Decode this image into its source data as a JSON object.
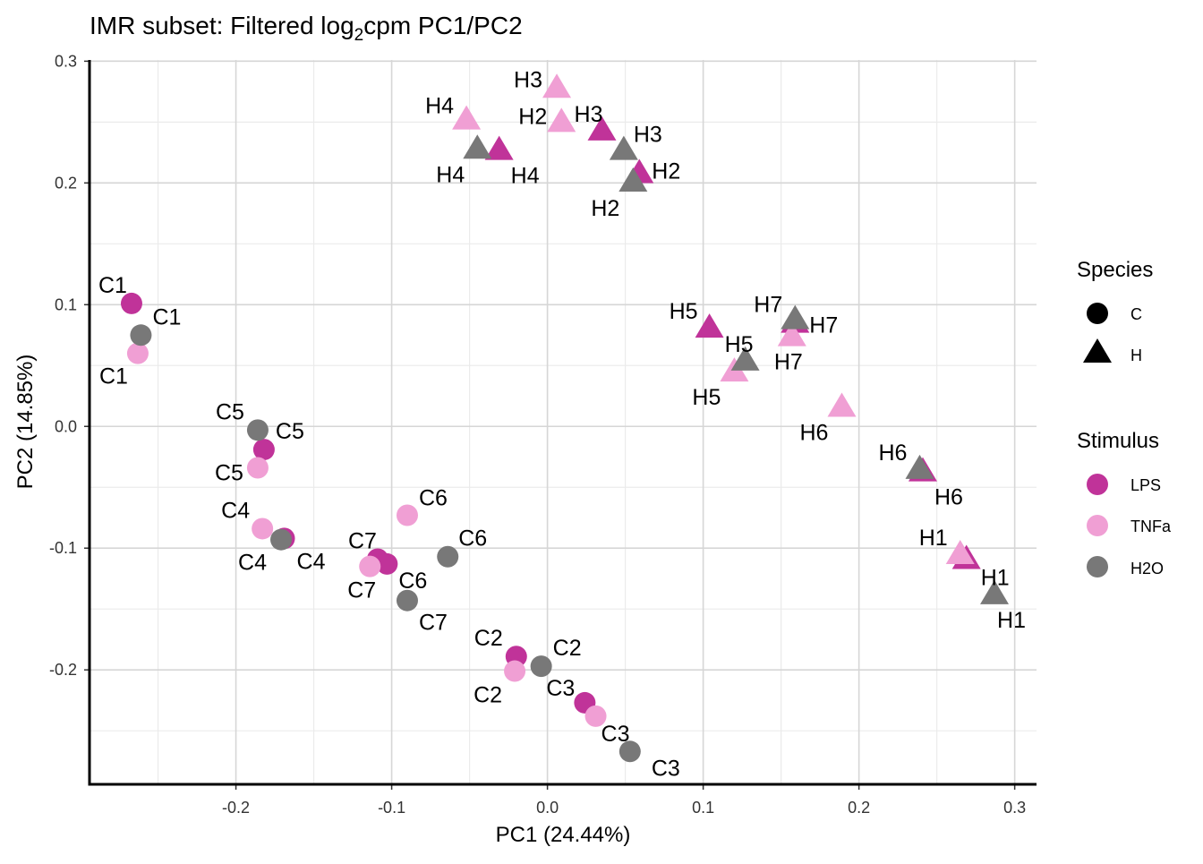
{
  "chart_data": {
    "type": "scatter",
    "title": {
      "prefix": "IMR subset: Filtered log",
      "subscript": "2",
      "suffix": "cpm PC1/PC2"
    },
    "xlabel": "PC1 (24.44%)",
    "ylabel": "PC2 (14.85%)",
    "xlim": [
      -0.294,
      0.314
    ],
    "ylim": [
      -0.294,
      0.301
    ],
    "xticks": [
      -0.2,
      -0.1,
      0.0,
      0.1,
      0.2,
      0.3
    ],
    "xtick_labels": [
      "-0.2",
      "-0.1",
      "0.0",
      "0.1",
      "0.2",
      "0.3"
    ],
    "yticks": [
      -0.2,
      -0.1,
      0.0,
      0.1,
      0.2,
      0.3
    ],
    "ytick_labels": [
      "-0.2",
      "-0.1",
      "0.0",
      "0.1",
      "0.2",
      "0.3"
    ],
    "grid": true,
    "legend_position": "right",
    "legend": {
      "species": {
        "title": "Species",
        "items": [
          {
            "label": "C",
            "shape": "circle"
          },
          {
            "label": "H",
            "shape": "triangle"
          }
        ]
      },
      "stimulus": {
        "title": "Stimulus",
        "items": [
          {
            "label": "LPS",
            "color": "#C03399"
          },
          {
            "label": "TNFa",
            "color": "#F09FD4"
          },
          {
            "label": "H2O",
            "color": "#787878"
          }
        ]
      }
    },
    "points": [
      {
        "sample": "C1",
        "species": "C",
        "stimulus": "LPS",
        "pc1": -0.267,
        "pc2": 0.101
      },
      {
        "sample": "C5",
        "species": "C",
        "stimulus": "LPS",
        "pc1": -0.182,
        "pc2": -0.019
      },
      {
        "sample": "C4",
        "species": "C",
        "stimulus": "LPS",
        "pc1": -0.169,
        "pc2": -0.092
      },
      {
        "sample": "C7",
        "species": "C",
        "stimulus": "LPS",
        "pc1": -0.109,
        "pc2": -0.109
      },
      {
        "sample": "C6",
        "species": "C",
        "stimulus": "LPS",
        "pc1": -0.103,
        "pc2": -0.113
      },
      {
        "sample": "C2",
        "species": "C",
        "stimulus": "LPS",
        "pc1": -0.02,
        "pc2": -0.189
      },
      {
        "sample": "C3",
        "species": "C",
        "stimulus": "LPS",
        "pc1": 0.024,
        "pc2": -0.227
      },
      {
        "sample": "C1",
        "species": "C",
        "stimulus": "TNFa",
        "pc1": -0.263,
        "pc2": 0.06
      },
      {
        "sample": "C5",
        "species": "C",
        "stimulus": "TNFa",
        "pc1": -0.186,
        "pc2": -0.034
      },
      {
        "sample": "C4",
        "species": "C",
        "stimulus": "TNFa",
        "pc1": -0.183,
        "pc2": -0.084
      },
      {
        "sample": "C7",
        "species": "C",
        "stimulus": "TNFa",
        "pc1": -0.114,
        "pc2": -0.115
      },
      {
        "sample": "C6",
        "species": "C",
        "stimulus": "TNFa",
        "pc1": -0.09,
        "pc2": -0.073
      },
      {
        "sample": "C2",
        "species": "C",
        "stimulus": "TNFa",
        "pc1": -0.021,
        "pc2": -0.201
      },
      {
        "sample": "C3",
        "species": "C",
        "stimulus": "TNFa",
        "pc1": 0.031,
        "pc2": -0.238
      },
      {
        "sample": "C1",
        "species": "C",
        "stimulus": "H2O",
        "pc1": -0.261,
        "pc2": 0.075
      },
      {
        "sample": "C5",
        "species": "C",
        "stimulus": "H2O",
        "pc1": -0.186,
        "pc2": -0.003
      },
      {
        "sample": "C4",
        "species": "C",
        "stimulus": "H2O",
        "pc1": -0.171,
        "pc2": -0.093
      },
      {
        "sample": "C7",
        "species": "C",
        "stimulus": "H2O",
        "pc1": -0.09,
        "pc2": -0.143
      },
      {
        "sample": "C6",
        "species": "C",
        "stimulus": "H2O",
        "pc1": -0.064,
        "pc2": -0.107
      },
      {
        "sample": "C2",
        "species": "C",
        "stimulus": "H2O",
        "pc1": -0.004,
        "pc2": -0.197
      },
      {
        "sample": "C3",
        "species": "C",
        "stimulus": "H2O",
        "pc1": 0.053,
        "pc2": -0.267
      },
      {
        "sample": "H4",
        "species": "H",
        "stimulus": "LPS",
        "pc1": -0.031,
        "pc2": 0.227
      },
      {
        "sample": "H3",
        "species": "H",
        "stimulus": "LPS",
        "pc1": 0.035,
        "pc2": 0.243
      },
      {
        "sample": "H2",
        "species": "H",
        "stimulus": "LPS",
        "pc1": 0.059,
        "pc2": 0.208
      },
      {
        "sample": "H5",
        "species": "H",
        "stimulus": "LPS",
        "pc1": 0.104,
        "pc2": 0.081
      },
      {
        "sample": "H7",
        "species": "H",
        "stimulus": "LPS",
        "pc1": 0.159,
        "pc2": 0.085
      },
      {
        "sample": "H6",
        "species": "H",
        "stimulus": "LPS",
        "pc1": 0.241,
        "pc2": -0.037
      },
      {
        "sample": "H1",
        "species": "H",
        "stimulus": "LPS",
        "pc1": 0.269,
        "pc2": -0.109
      },
      {
        "sample": "H3",
        "species": "H",
        "stimulus": "TNFa",
        "pc1": 0.006,
        "pc2": 0.278
      },
      {
        "sample": "H2",
        "species": "H",
        "stimulus": "TNFa",
        "pc1": 0.009,
        "pc2": 0.25
      },
      {
        "sample": "H4",
        "species": "H",
        "stimulus": "TNFa",
        "pc1": -0.052,
        "pc2": 0.252
      },
      {
        "sample": "H5",
        "species": "H",
        "stimulus": "TNFa",
        "pc1": 0.12,
        "pc2": 0.045
      },
      {
        "sample": "H7",
        "species": "H",
        "stimulus": "TNFa",
        "pc1": 0.157,
        "pc2": 0.074
      },
      {
        "sample": "H6",
        "species": "H",
        "stimulus": "TNFa",
        "pc1": 0.189,
        "pc2": 0.016
      },
      {
        "sample": "H1",
        "species": "H",
        "stimulus": "TNFa",
        "pc1": 0.265,
        "pc2": -0.105
      },
      {
        "sample": "H4",
        "species": "H",
        "stimulus": "H2O",
        "pc1": -0.045,
        "pc2": 0.228
      },
      {
        "sample": "H3",
        "species": "H",
        "stimulus": "H2O",
        "pc1": 0.049,
        "pc2": 0.227
      },
      {
        "sample": "H2",
        "species": "H",
        "stimulus": "H2O",
        "pc1": 0.055,
        "pc2": 0.201
      },
      {
        "sample": "H5",
        "species": "H",
        "stimulus": "H2O",
        "pc1": 0.127,
        "pc2": 0.054
      },
      {
        "sample": "H7",
        "species": "H",
        "stimulus": "H2O",
        "pc1": 0.159,
        "pc2": 0.088
      },
      {
        "sample": "H6",
        "species": "H",
        "stimulus": "H2O",
        "pc1": 0.239,
        "pc2": -0.035
      },
      {
        "sample": "H1",
        "species": "H",
        "stimulus": "H2O",
        "pc1": 0.287,
        "pc2": -0.138
      }
    ]
  }
}
